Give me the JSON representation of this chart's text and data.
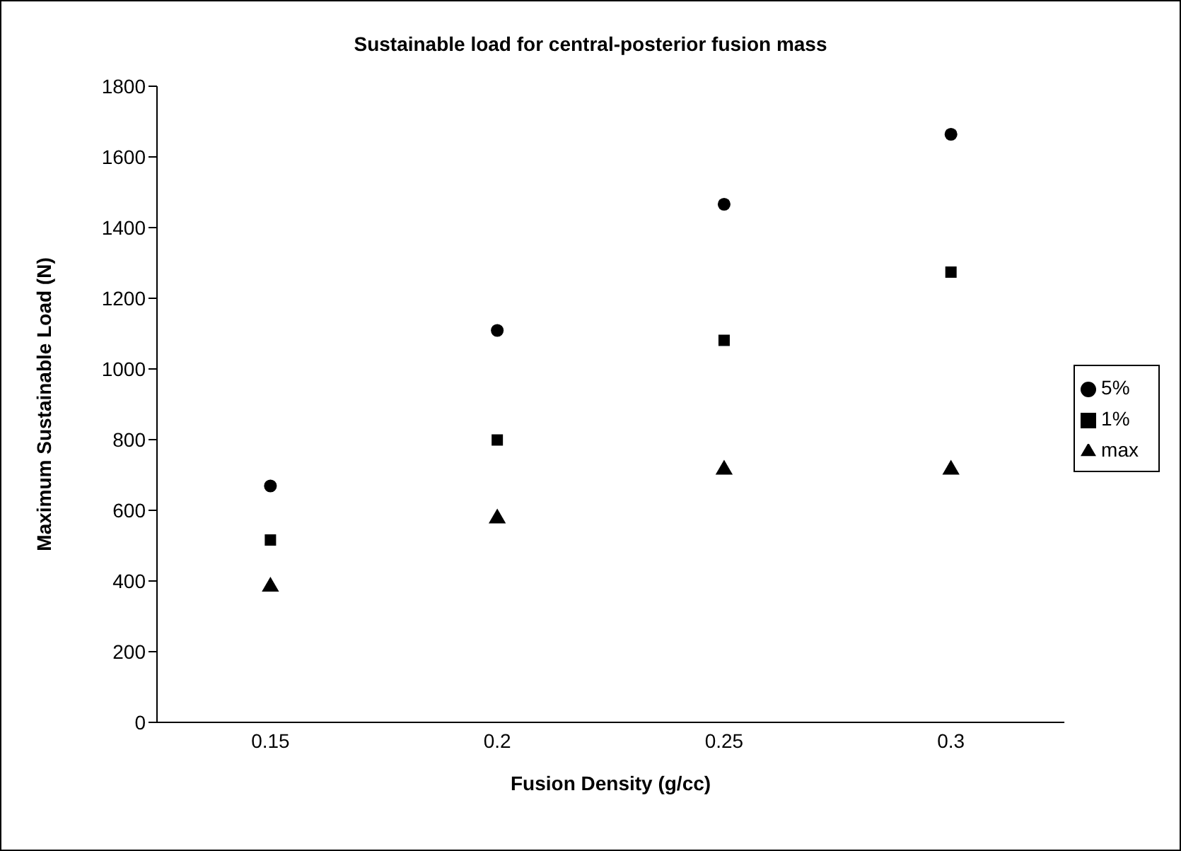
{
  "chart_data": {
    "type": "scatter",
    "title": "Sustainable load for central-posterior fusion mass",
    "xlabel": "Fusion Density (g/cc)",
    "ylabel": "Maximum Sustainable Load (N)",
    "categories": [
      "0.15",
      "0.2",
      "0.25",
      "0.3"
    ],
    "series": [
      {
        "name": "5%",
        "color": "#000000",
        "marker": "circle",
        "values": [
          669,
          1109,
          1466,
          1664
        ]
      },
      {
        "name": "1%",
        "color": "#000000",
        "marker": "square",
        "values": [
          516,
          799,
          1081,
          1274
        ]
      },
      {
        "name": "max",
        "color": "#000000",
        "marker": "triangle",
        "values": [
          384,
          577,
          715,
          715
        ]
      }
    ],
    "ylim": [
      0,
      1800
    ],
    "yticks": [
      0,
      200,
      400,
      600,
      800,
      1000,
      1200,
      1400,
      1600,
      1800
    ],
    "legend": "right"
  }
}
